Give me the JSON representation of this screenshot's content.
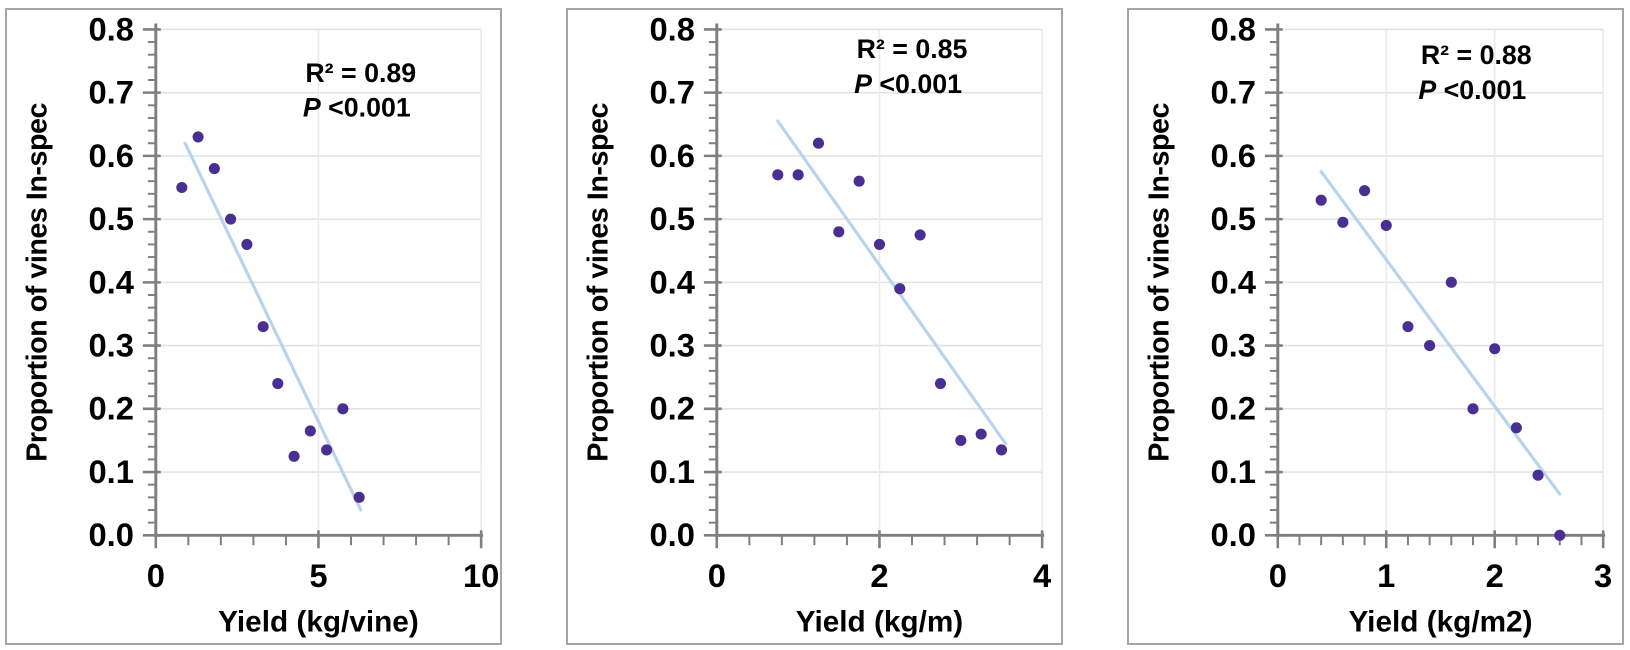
{
  "figure": {
    "description": "Three scatter plots of proportion of vines in-spec versus yield expressed in three units",
    "background": "#ffffff",
    "panel_border": "#a5a5a5"
  },
  "colors": {
    "point": "#4a2f92",
    "trendline": "#b8d4ec",
    "grid_horizontal": "#e2e2e2",
    "grid_vertical": "#eaeaea",
    "axis": "#7f7f7f",
    "text": "#000000"
  },
  "chart_data": [
    {
      "type": "scatter",
      "title": "",
      "xlabel": "Yield (kg/vine)",
      "ylabel": "Proportion of vines In-spec",
      "xlim": [
        0,
        10
      ],
      "ylim": [
        0,
        0.8
      ],
      "grid": true,
      "legend": "none",
      "x_tick_values": [
        0,
        5,
        10
      ],
      "x_tick_labels": [
        "0",
        "5",
        "10"
      ],
      "x_minor_step": 1,
      "y_tick_values": [
        0,
        0.1,
        0.2,
        0.3,
        0.4,
        0.5,
        0.6,
        0.7,
        0.8
      ],
      "y_tick_labels": [
        "0.0",
        "0.1",
        "0.2",
        "0.3",
        "0.4",
        "0.5",
        "0.6",
        "0.7",
        "0.8"
      ],
      "y_minor_step": 0.02,
      "points": [
        [
          0.8,
          0.55
        ],
        [
          1.3,
          0.63
        ],
        [
          1.8,
          0.58
        ],
        [
          2.3,
          0.5
        ],
        [
          2.8,
          0.46
        ],
        [
          3.3,
          0.33
        ],
        [
          3.75,
          0.24
        ],
        [
          4.25,
          0.125
        ],
        [
          4.75,
          0.165
        ],
        [
          5.25,
          0.135
        ],
        [
          5.75,
          0.2
        ],
        [
          6.25,
          0.06
        ]
      ],
      "trendline": {
        "x1": 0.9,
        "y1": 0.62,
        "x2": 6.3,
        "y2": 0.04
      },
      "annotation": {
        "r2": "R² = 0.89",
        "p_italic": "P",
        "p_rest": " <0.001",
        "x_frac": 0.63,
        "y": 72
      }
    },
    {
      "type": "scatter",
      "title": "",
      "xlabel": "Yield (kg/m)",
      "ylabel": "Proportion of vines In-spec",
      "xlim": [
        0,
        4
      ],
      "ylim": [
        0,
        0.8
      ],
      "grid": true,
      "legend": "none",
      "x_tick_values": [
        0,
        2,
        4
      ],
      "x_tick_labels": [
        "0",
        "2",
        "4"
      ],
      "x_minor_step": 0.4,
      "y_tick_values": [
        0,
        0.1,
        0.2,
        0.3,
        0.4,
        0.5,
        0.6,
        0.7,
        0.8
      ],
      "y_tick_labels": [
        "0.0",
        "0.1",
        "0.2",
        "0.3",
        "0.4",
        "0.5",
        "0.6",
        "0.7",
        "0.8"
      ],
      "y_minor_step": 0.02,
      "points": [
        [
          0.75,
          0.57
        ],
        [
          1.0,
          0.57
        ],
        [
          1.25,
          0.62
        ],
        [
          1.5,
          0.48
        ],
        [
          1.75,
          0.56
        ],
        [
          2.0,
          0.46
        ],
        [
          2.25,
          0.39
        ],
        [
          2.5,
          0.475
        ],
        [
          2.75,
          0.24
        ],
        [
          3.0,
          0.15
        ],
        [
          3.25,
          0.16
        ],
        [
          3.5,
          0.135
        ]
      ],
      "trendline": {
        "x1": 0.75,
        "y1": 0.655,
        "x2": 3.55,
        "y2": 0.145
      },
      "annotation": {
        "r2": "R² = 0.85",
        "p_italic": "P",
        "p_rest": " <0.001",
        "x_frac": 0.6,
        "y": 48
      }
    },
    {
      "type": "scatter",
      "title": "",
      "xlabel": "Yield (kg/m2)",
      "ylabel": "Proportion of vines In-spec",
      "xlim": [
        0,
        3
      ],
      "ylim": [
        0,
        0.8
      ],
      "grid": true,
      "legend": "none",
      "x_tick_values": [
        0,
        1,
        2,
        3
      ],
      "x_tick_labels": [
        "0",
        "1",
        "2",
        "3"
      ],
      "x_minor_step": 0.2,
      "y_tick_values": [
        0,
        0.1,
        0.2,
        0.3,
        0.4,
        0.5,
        0.6,
        0.7,
        0.8
      ],
      "y_tick_labels": [
        "0.0",
        "0.1",
        "0.2",
        "0.3",
        "0.4",
        "0.5",
        "0.6",
        "0.7",
        "0.8"
      ],
      "y_minor_step": 0.02,
      "points": [
        [
          0.4,
          0.53
        ],
        [
          0.6,
          0.495
        ],
        [
          0.8,
          0.545
        ],
        [
          1.0,
          0.49
        ],
        [
          1.2,
          0.33
        ],
        [
          1.4,
          0.3
        ],
        [
          1.6,
          0.4
        ],
        [
          1.8,
          0.2
        ],
        [
          2.0,
          0.295
        ],
        [
          2.2,
          0.17
        ],
        [
          2.4,
          0.095
        ],
        [
          2.6,
          0.0
        ]
      ],
      "trendline": {
        "x1": 0.4,
        "y1": 0.575,
        "x2": 2.6,
        "y2": 0.065
      },
      "annotation": {
        "r2": "R² = 0.88",
        "p_italic": "P",
        "p_rest": " <0.001",
        "x_frac": 0.61,
        "y": 54
      }
    }
  ]
}
